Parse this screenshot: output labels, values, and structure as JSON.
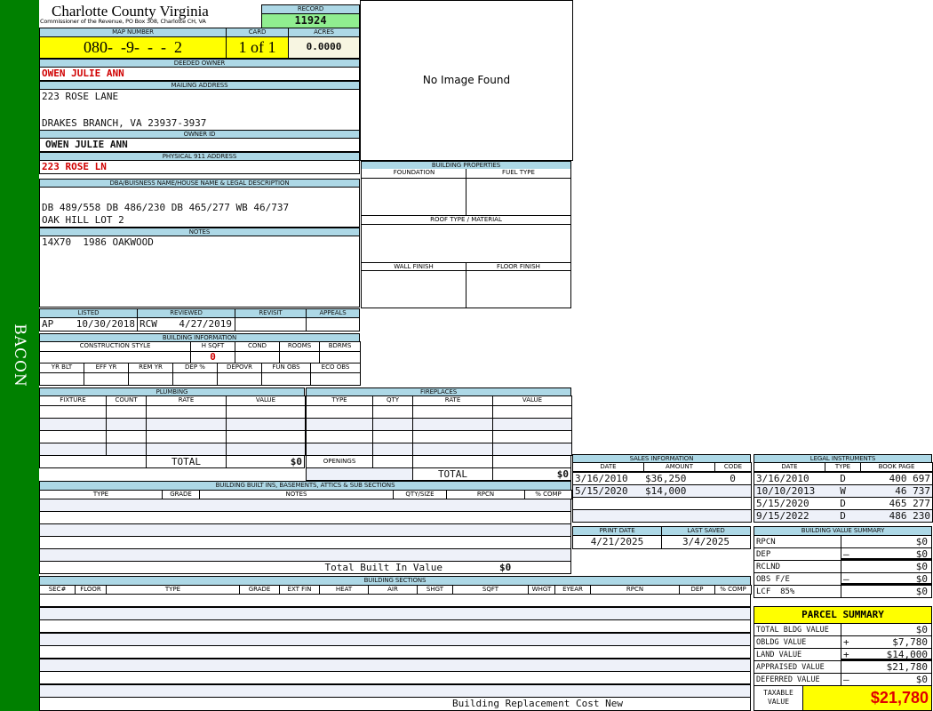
{
  "sidebar": {
    "label": "BACON",
    "color": "#008000"
  },
  "header": {
    "title": "Charlotte County Virginia",
    "subtitle": "Commissioner of the Revenue, PO Box 308, Charlotte CH, VA",
    "record_label": "RECORD",
    "record": "11924"
  },
  "parcel": {
    "map_label": "MAP NUMBER",
    "map": "080-  -9-  -  -  2",
    "card_label": "CARD",
    "card": "1 of 1",
    "acres_label": "ACRES",
    "acres": "0.0000"
  },
  "owner": {
    "deeded_label": "DEEDED OWNER",
    "deeded": "OWEN JULIE ANN",
    "mailing_label": "MAILING ADDRESS",
    "mailing_line1": "223 ROSE LANE",
    "mailing_line2": "DRAKES BRANCH, VA 23937-3937",
    "owner_id_label": "OWNER ID",
    "owner_id": "OWEN JULIE ANN",
    "physical_label": "PHYSICAL 911 ADDRESS",
    "physical": "223 ROSE LN"
  },
  "image": {
    "text": "No Image Found"
  },
  "legal": {
    "label": "DBA/BUISNESS NAME/HOUSE NAME & LEGAL DESCRIPTION",
    "line1": "DB 489/558 DB 486/230 DB 465/277 WB 46/737",
    "line2": "OAK HILL LOT 2",
    "notes_label": "NOTES",
    "notes": "14X70  1986 OAKWOOD"
  },
  "building_properties": {
    "label": "BUILDING PROPERTIES",
    "foundation": "FOUNDATION",
    "fuel": "FUEL TYPE",
    "roof": "ROOF TYPE / MATERIAL",
    "wall": "WALL FINISH",
    "floor": "FLOOR FINISH"
  },
  "review": {
    "listed_label": "LISTED",
    "listed_by": "AP",
    "listed_date": "10/30/2018",
    "reviewed_label": "REVIEWED",
    "reviewed_by": "RCW",
    "reviewed_date": "4/27/2019",
    "revisit_label": "REVISIT",
    "appeals_label": "APPEALS"
  },
  "building_info": {
    "label": "BUILDING INFORMATION",
    "cols1": [
      "CONSTRUCTION STYLE",
      "H SQFT",
      "COND",
      "ROOMS",
      "BDRMS"
    ],
    "hsqft": "0",
    "cols2": [
      "YR BLT",
      "EFF YR",
      "REM YR",
      "DEP %",
      "DEPOVR",
      "FUN OBS",
      "ECO OBS"
    ]
  },
  "plumbing": {
    "label": "PLUMBING",
    "cols": [
      "FIXTURE",
      "COUNT",
      "RATE",
      "VALUE"
    ],
    "total_label": "TOTAL",
    "total": "$0"
  },
  "fireplaces": {
    "label": "FIREPLACES",
    "cols": [
      "TYPE",
      "QTY",
      "RATE",
      "VALUE"
    ],
    "openings_label": "OPENINGS",
    "total_label": "TOTAL",
    "total": "$0"
  },
  "built_ins": {
    "label": "BUILDING BUILT INS, BASEMENTS, ATTICS & SUB SECTIONS",
    "cols": [
      "TYPE",
      "GRADE",
      "NOTES",
      "QTY/SIZE",
      "RPCN",
      "% COMP"
    ],
    "total_label": "Total Built In Value",
    "total": "$0"
  },
  "sections": {
    "label": "BUILDING SECTIONS",
    "cols": [
      "SEC#",
      "FLOOR",
      "TYPE",
      "GRADE",
      "EXT FIN",
      "HEAT",
      "AIR",
      "SHGT",
      "SQFT",
      "WHGT",
      "EYEAR",
      "RPCN",
      "DEP",
      "% COMP"
    ],
    "footer": "Building Replacement Cost New"
  },
  "sales": {
    "label": "SALES INFORMATION",
    "cols": [
      "DATE",
      "AMOUNT",
      "CODE"
    ],
    "rows": [
      [
        "3/16/2010",
        "$36,250",
        "0"
      ],
      [
        "5/15/2020",
        "$14,000",
        ""
      ]
    ]
  },
  "dates": {
    "print_label": "PRINT DATE",
    "print": "4/21/2025",
    "saved_label": "LAST SAVED",
    "saved": "3/4/2025"
  },
  "instruments": {
    "label": "LEGAL INSTRUMENTS",
    "cols": [
      "DATE",
      "TYPE",
      "BOOK PAGE"
    ],
    "rows": [
      [
        "3/16/2010",
        "D",
        "400 697"
      ],
      [
        "10/10/2013",
        "W",
        "46 737"
      ],
      [
        "5/15/2020",
        "D",
        "465 277"
      ],
      [
        "9/15/2022",
        "D",
        "486 230"
      ]
    ]
  },
  "value_summary": {
    "label": "BUILDING VALUE SUMMARY",
    "rows": [
      [
        "RPCN",
        "",
        "$0"
      ],
      [
        "DEP",
        "–",
        "$0"
      ],
      [
        "RCLND",
        "",
        "$0"
      ],
      [
        "OBS F/E",
        "–",
        "$0"
      ],
      [
        "LCF  85%",
        "",
        "$0"
      ]
    ],
    "lcf_pct": "85%"
  },
  "parcel_summary": {
    "label": "PARCEL SUMMARY",
    "rows": [
      [
        "TOTAL BLDG VALUE",
        "",
        "$0"
      ],
      [
        "OBLDG VALUE",
        "+",
        "$7,780"
      ],
      [
        "LAND VALUE",
        "+",
        "$14,000"
      ],
      [
        "APPRAISED VALUE",
        "",
        "$21,780"
      ],
      [
        "DEFERRED VALUE",
        "–",
        "$0"
      ]
    ],
    "taxable_label": "TAXABLE VALUE",
    "taxable": "$21,780"
  }
}
